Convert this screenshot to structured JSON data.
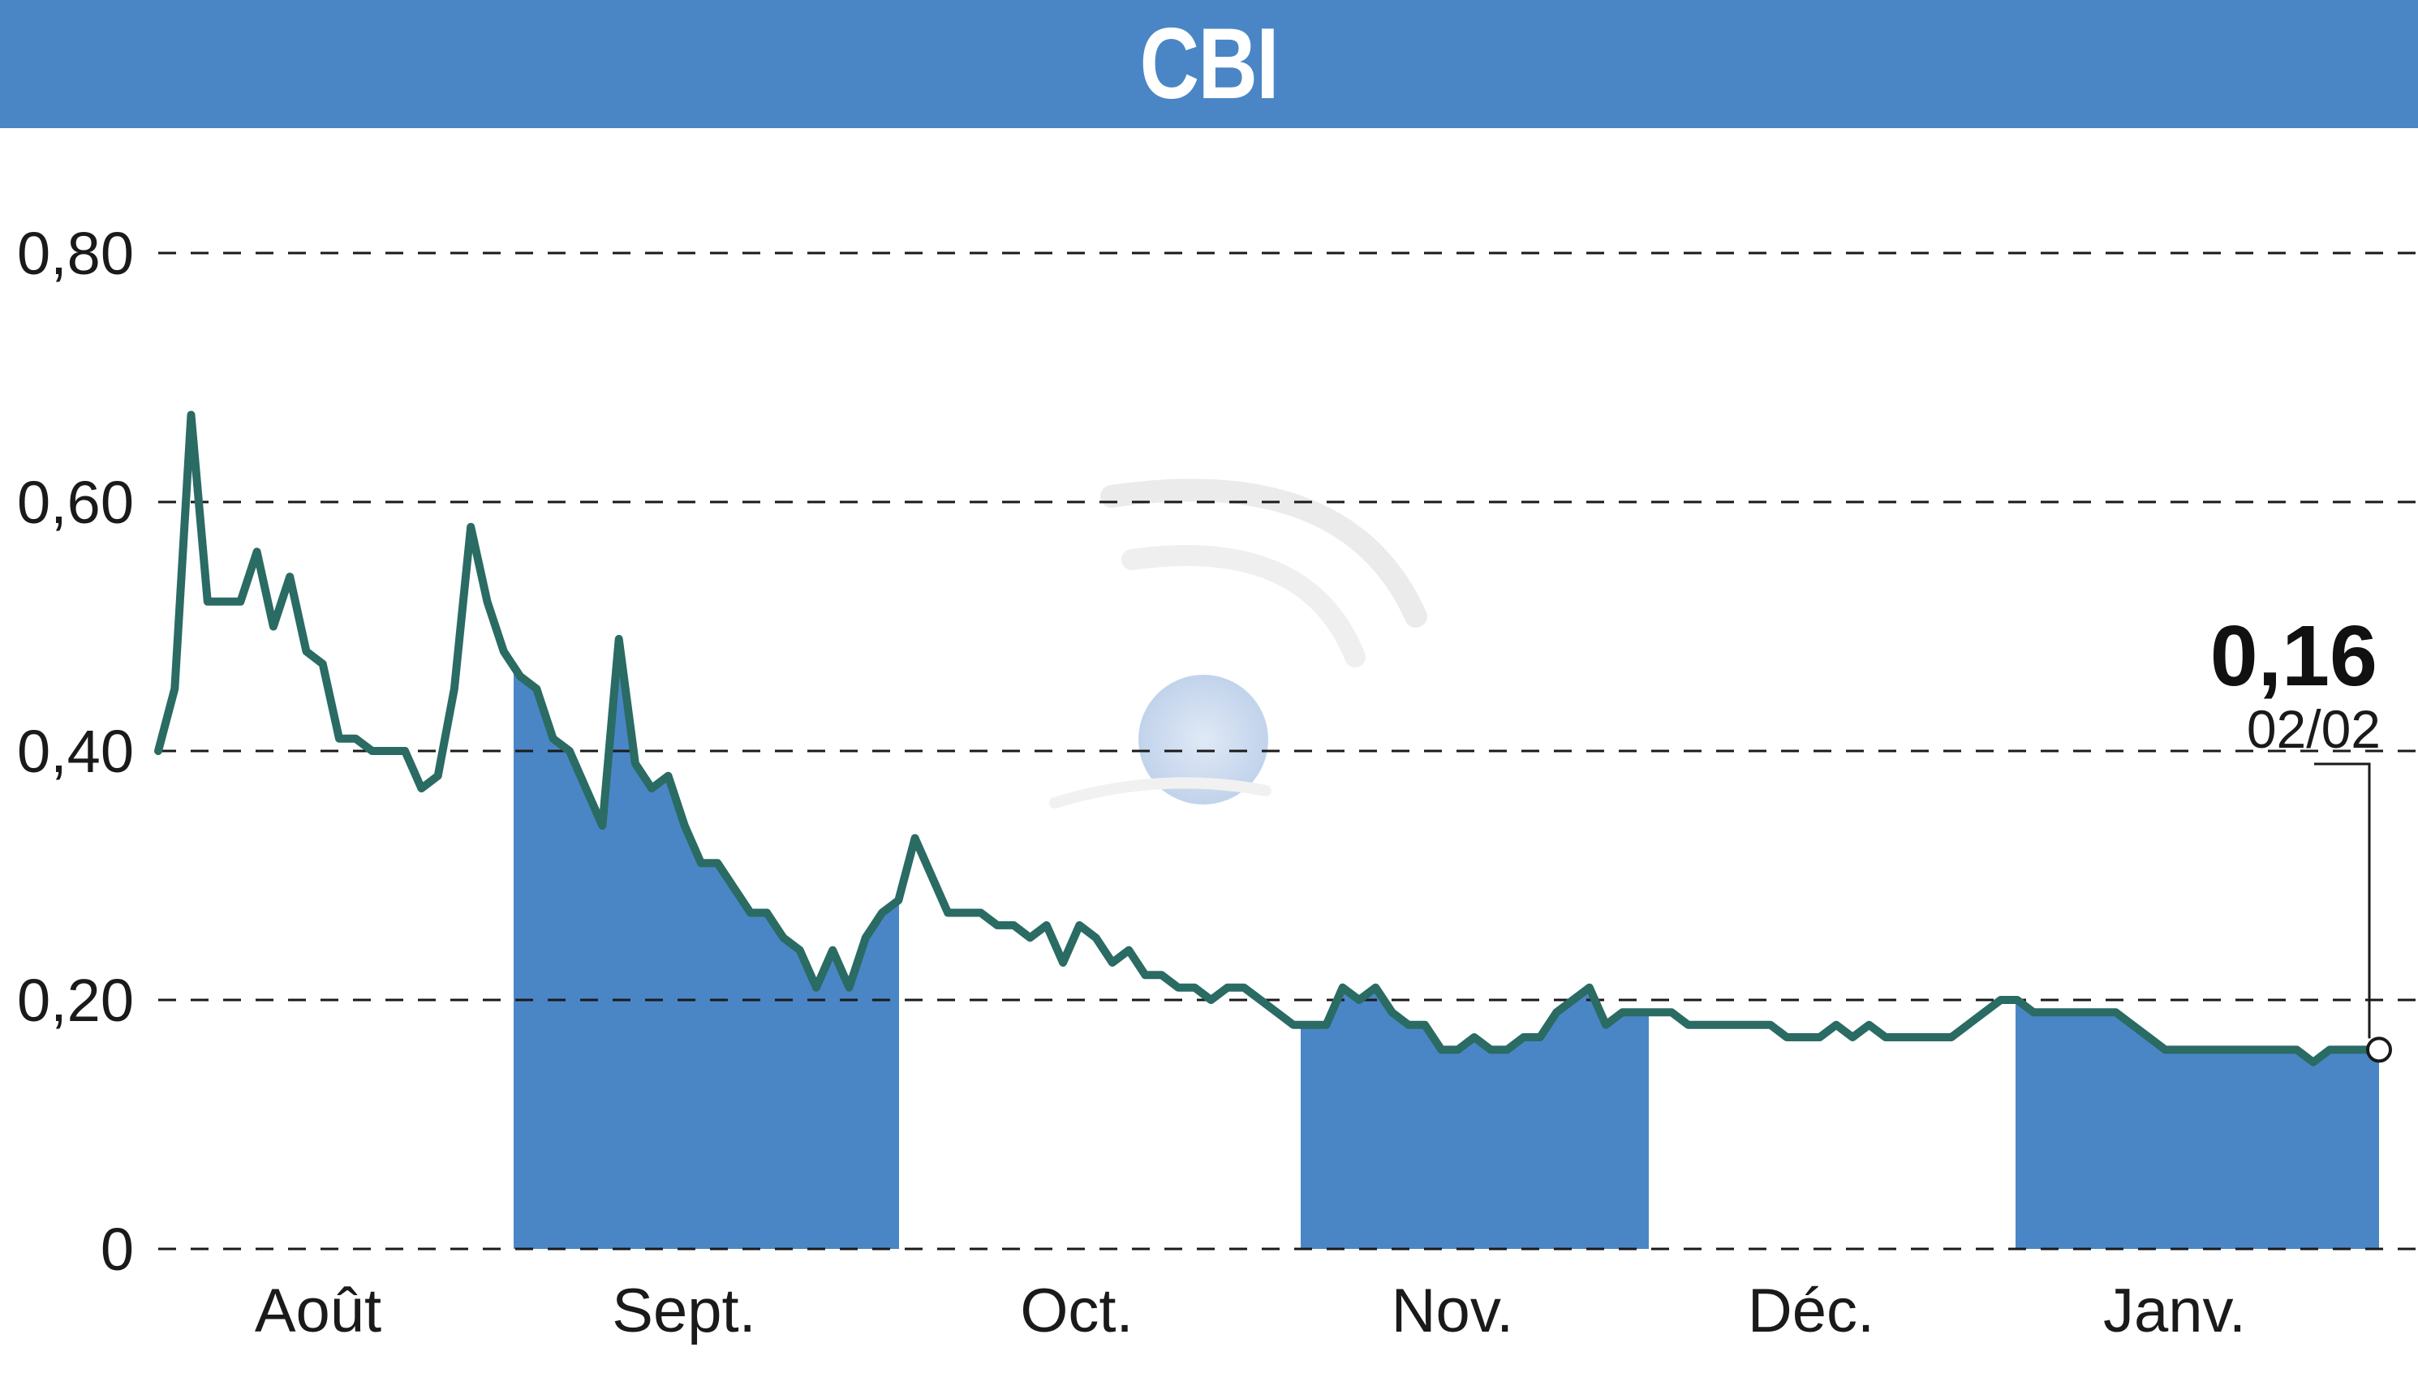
{
  "header": {
    "title": "CBI"
  },
  "chart_data": {
    "type": "line",
    "title": "CBI",
    "ylim": [
      0,
      0.8
    ],
    "y_ticks": [
      "0",
      "0,20",
      "0,40",
      "0,60",
      "0,80"
    ],
    "y_tick_values": [
      0,
      0.2,
      0.4,
      0.6,
      0.8
    ],
    "months": [
      "Août",
      "Sept.",
      "Oct.",
      "Nov.",
      "Déc.",
      "Janv."
    ],
    "shaded_months": [
      "Sept.",
      "Nov.",
      "Janv."
    ],
    "grid": true,
    "last_value_label": "0,16",
    "last_date_label": "02/02",
    "colors": {
      "line": "#2a6b63",
      "fill": "#4a86c5",
      "header": "#4a86c5"
    },
    "series": [
      {
        "values": [
          0.4,
          0.45,
          0.67,
          0.52,
          0.52,
          0.52,
          0.56,
          0.5,
          0.54,
          0.48,
          0.47,
          0.41,
          0.41,
          0.4,
          0.4,
          0.4,
          0.37,
          0.38,
          0.45,
          0.58,
          0.52,
          0.48,
          0.46,
          0.45,
          0.41,
          0.4,
          0.37,
          0.34,
          0.49,
          0.39,
          0.37,
          0.38,
          0.34,
          0.31,
          0.31,
          0.29,
          0.27,
          0.27,
          0.25,
          0.24,
          0.21,
          0.24,
          0.21,
          0.25,
          0.27,
          0.28,
          0.33,
          0.3,
          0.27,
          0.27,
          0.27,
          0.26,
          0.26,
          0.25,
          0.26,
          0.23,
          0.26,
          0.25,
          0.23,
          0.24,
          0.22,
          0.22,
          0.21,
          0.21,
          0.2,
          0.21,
          0.21,
          0.2,
          0.19,
          0.18,
          0.18,
          0.18,
          0.21,
          0.2,
          0.21,
          0.19,
          0.18,
          0.18,
          0.16,
          0.16,
          0.17,
          0.16,
          0.16,
          0.17,
          0.17,
          0.19,
          0.2,
          0.21,
          0.18,
          0.19,
          0.19,
          0.19,
          0.19,
          0.18,
          0.18,
          0.18,
          0.18,
          0.18,
          0.18,
          0.17,
          0.17,
          0.17,
          0.18,
          0.17,
          0.18,
          0.17,
          0.17,
          0.17,
          0.17,
          0.17,
          0.18,
          0.19,
          0.2,
          0.2,
          0.19,
          0.19,
          0.19,
          0.19,
          0.19,
          0.19,
          0.18,
          0.17,
          0.16,
          0.16,
          0.16,
          0.16,
          0.16,
          0.16,
          0.16,
          0.16,
          0.16,
          0.15,
          0.16,
          0.16,
          0.16,
          0.16
        ]
      }
    ]
  }
}
